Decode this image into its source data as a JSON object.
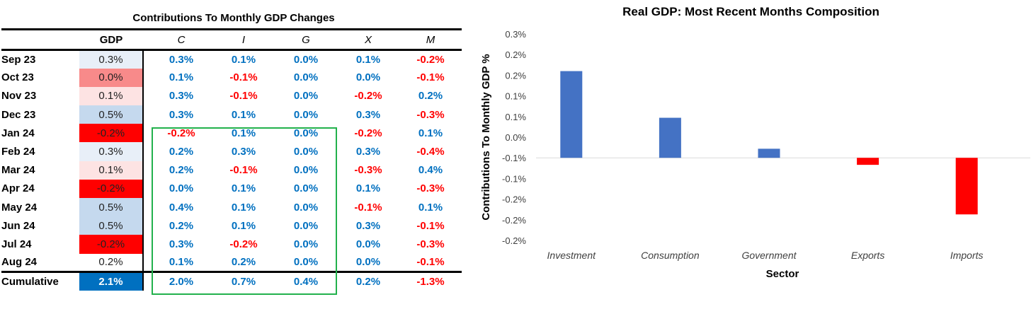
{
  "table": {
    "title": "Contributions To Monthly GDP Changes",
    "headers": [
      "GDP",
      "C",
      "I",
      "G",
      "X",
      "M"
    ],
    "rows": [
      {
        "label": "Sep 23",
        "gdp": "0.3%",
        "C": "0.3%",
        "I": "0.1%",
        "G": "0.0%",
        "X": "0.1%",
        "M": "-0.2%"
      },
      {
        "label": "Oct 23",
        "gdp": "0.0%",
        "C": "0.1%",
        "I": "-0.1%",
        "G": "0.0%",
        "X": "0.0%",
        "M": "-0.1%"
      },
      {
        "label": "Nov 23",
        "gdp": "0.1%",
        "C": "0.3%",
        "I": "-0.1%",
        "G": "0.0%",
        "X": "-0.2%",
        "M": "0.2%"
      },
      {
        "label": "Dec 23",
        "gdp": "0.5%",
        "C": "0.3%",
        "I": "0.1%",
        "G": "0.0%",
        "X": "0.3%",
        "M": "-0.3%"
      },
      {
        "label": "Jan 24",
        "gdp": "-0.2%",
        "C": "-0.2%",
        "I": "0.1%",
        "G": "0.0%",
        "X": "-0.2%",
        "M": "0.1%"
      },
      {
        "label": "Feb 24",
        "gdp": "0.3%",
        "C": "0.2%",
        "I": "0.3%",
        "G": "0.0%",
        "X": "0.3%",
        "M": "-0.4%"
      },
      {
        "label": "Mar 24",
        "gdp": "0.1%",
        "C": "0.2%",
        "I": "-0.1%",
        "G": "0.0%",
        "X": "-0.3%",
        "M": "0.4%"
      },
      {
        "label": "Apr 24",
        "gdp": "-0.2%",
        "C": "0.0%",
        "I": "0.1%",
        "G": "0.0%",
        "X": "0.1%",
        "M": "-0.3%"
      },
      {
        "label": "May 24",
        "gdp": "0.5%",
        "C": "0.4%",
        "I": "0.1%",
        "G": "0.0%",
        "X": "-0.1%",
        "M": "0.1%"
      },
      {
        "label": "Jun 24",
        "gdp": "0.5%",
        "C": "0.2%",
        "I": "0.1%",
        "G": "0.0%",
        "X": "0.3%",
        "M": "-0.1%"
      },
      {
        "label": "Jul 24",
        "gdp": "-0.2%",
        "C": "0.3%",
        "I": "-0.2%",
        "G": "0.0%",
        "X": "0.0%",
        "M": "-0.3%"
      },
      {
        "label": "Aug 24",
        "gdp": "0.2%",
        "C": "0.1%",
        "I": "0.2%",
        "G": "0.0%",
        "X": "0.0%",
        "M": "-0.1%"
      }
    ],
    "cumulative": {
      "label": "Cumulative",
      "gdp": "2.1%",
      "C": "2.0%",
      "I": "0.7%",
      "G": "0.4%",
      "X": "0.2%",
      "M": "-1.3%"
    },
    "colors": {
      "positive": "#0070c0",
      "negative": "#ff0000",
      "cumulative_bg": "#0070c0",
      "highlight_box": "#22b14c"
    }
  },
  "chart_data": {
    "type": "bar",
    "title": "Real GDP: Most Recent Months Composition",
    "xlabel": "Sector",
    "ylabel": "Contributions To Monthly GDP %",
    "categories": [
      "Investment",
      "Consumption",
      "Government",
      "Exports",
      "Imports"
    ],
    "values": [
      0.21,
      0.097,
      0.022,
      -0.017,
      -0.137
    ],
    "ylim": [
      -0.2,
      0.3
    ],
    "yticks": [
      "0.3%",
      "0.2%",
      "0.2%",
      "0.1%",
      "0.1%",
      "0.0%",
      "-0.1%",
      "-0.1%",
      "-0.2%",
      "-0.2%",
      "-0.2%"
    ],
    "grid": false,
    "colors": {
      "positive": "#4472c4",
      "negative": "#ff0000"
    }
  }
}
